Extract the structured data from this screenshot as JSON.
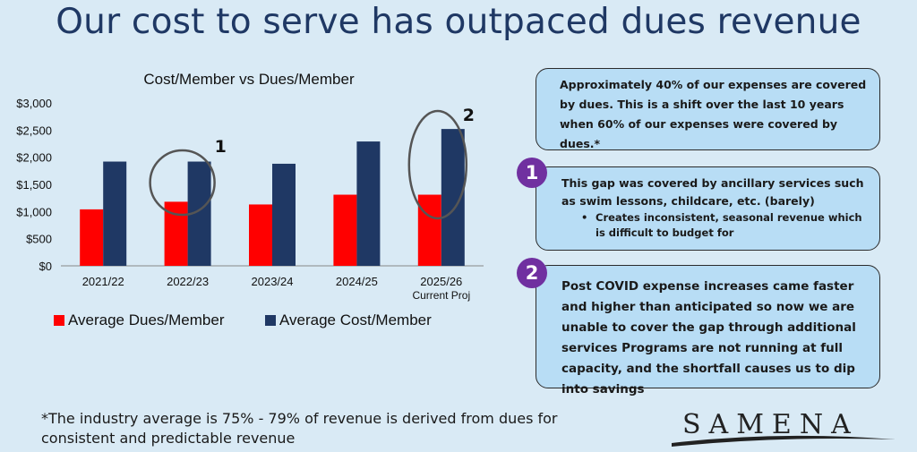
{
  "title": "Our cost to serve has outpaced dues revenue",
  "chart_data": {
    "type": "bar",
    "title": "Cost/Member vs Dues/Member",
    "categories": [
      "2021/22",
      "2022/23",
      "2023/24",
      "2024/25",
      "2025/26"
    ],
    "category_sublabels": [
      "",
      "",
      "",
      "",
      "Current Proj"
    ],
    "series": [
      {
        "name": "Average Dues/Member",
        "color": "#ff0000",
        "values": [
          1040,
          1180,
          1130,
          1310,
          1310
        ]
      },
      {
        "name": "Average Cost/Member",
        "color": "#1f3864",
        "values": [
          1920,
          1920,
          1880,
          2290,
          2520
        ]
      }
    ],
    "ylim": [
      0,
      3000
    ],
    "yticks": [
      "$0",
      "$500",
      "$1,000",
      "$1,500",
      "$2,000",
      "$2,500",
      "$3,000"
    ],
    "legend": "bottom",
    "annotations": [
      {
        "label": "1",
        "category": "2022/23"
      },
      {
        "label": "2",
        "category": "2025/26"
      }
    ]
  },
  "boxes": {
    "box1": "Approximately 40% of our expenses are covered by dues. This is a shift over the last 10 years when 60% of our expenses were covered by dues.*",
    "box2": {
      "number": "1",
      "text": "This gap was covered by ancillary services such as swim lessons, childcare, etc. (barely)",
      "bullet": "Creates inconsistent, seasonal revenue which is difficult to budget for"
    },
    "box3": {
      "number": "2",
      "text": "Post COVID expense increases came faster and higher than anticipated so now we are unable to cover the gap through additional services Programs are not running at full capacity, and the shortfall causes us to dip into savings"
    }
  },
  "footnote": "*The industry average is 75% - 79% of revenue is derived from dues for consistent and predictable revenue",
  "logo": "SAMENA"
}
